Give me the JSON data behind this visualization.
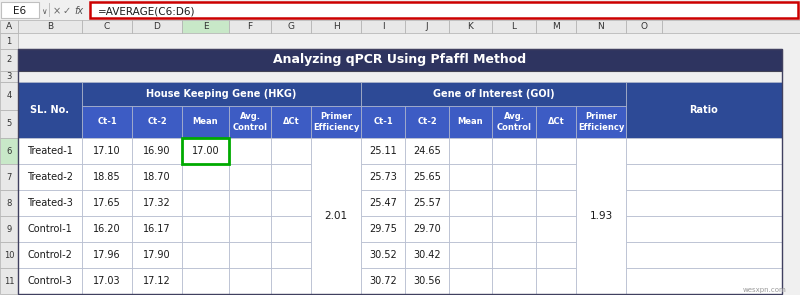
{
  "title": "Analyzing qPCR Using Pfaffl Method",
  "formula_bar_text": "=AVERAGE(C6:D6)",
  "cell_ref": "E6",
  "col_letters": [
    "A",
    "B",
    "C",
    "D",
    "E",
    "F",
    "G",
    "H",
    "I",
    "J",
    "K",
    "L",
    "M",
    "N",
    "O"
  ],
  "row_numbers": [
    "1",
    "2",
    "3",
    "4",
    "5",
    "6",
    "7",
    "8",
    "9",
    "10",
    "11"
  ],
  "header_hkg": "House Keeping Gene (HKG)",
  "header_goi": "Gene of Interest (GOI)",
  "col_headers_sub": [
    "Ct-1",
    "Ct-2",
    "Mean",
    "Avg.\nControl",
    "ΔCt",
    "Primer\nEfficiency",
    "Ct-1",
    "Ct-2",
    "Mean",
    "Avg.\nControl",
    "ΔCt",
    "Primer\nEfficiency"
  ],
  "data_rows": [
    [
      "Treated-1",
      "17.10",
      "16.90",
      "17.00",
      "",
      "",
      "",
      "25.11",
      "24.65",
      "",
      "",
      "",
      "",
      ""
    ],
    [
      "Treated-2",
      "18.85",
      "18.70",
      "",
      "",
      "",
      "",
      "25.73",
      "25.65",
      "",
      "",
      "",
      "",
      ""
    ],
    [
      "Treated-3",
      "17.65",
      "17.32",
      "",
      "",
      "",
      "2.01",
      "25.47",
      "25.57",
      "",
      "",
      "",
      "1.93",
      ""
    ],
    [
      "Control-1",
      "16.20",
      "16.17",
      "",
      "",
      "",
      "",
      "29.75",
      "29.70",
      "",
      "",
      "",
      "",
      ""
    ],
    [
      "Control-2",
      "17.96",
      "17.90",
      "",
      "",
      "",
      "",
      "30.52",
      "30.42",
      "",
      "",
      "",
      "",
      ""
    ],
    [
      "Control-3",
      "17.03",
      "17.12",
      "",
      "",
      "",
      "",
      "30.72",
      "30.56",
      "",
      "",
      "",
      "",
      ""
    ]
  ],
  "title_bg": "#2e3460",
  "header_bg": "#2d4a96",
  "subheader_bg": "#3d5cc4",
  "cell_bg": "#ffffff",
  "alt_cell_bg": "#f0f4ff",
  "header_text_color": "#ffffff",
  "cell_text_color": "#1a1a1a",
  "grid_color": "#b0b8cc",
  "selected_cell_border": "#00aa00",
  "formula_bar_border": "#cc0000",
  "excel_bg": "#f0f0f0",
  "tab_header_bg": "#e8e8e8",
  "col_header_selected_bg": "#c8e8c8",
  "row_header_border": "#b0b0b0",
  "watermark": "wesxpn.com",
  "row_header_selected_bg": "#c8e8c8"
}
